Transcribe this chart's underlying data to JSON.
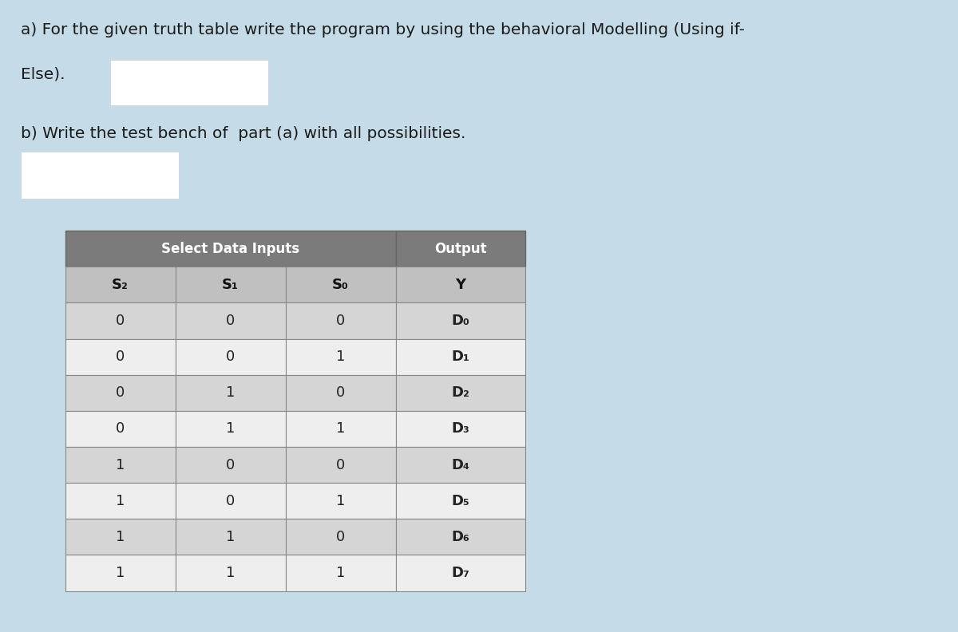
{
  "background_color": "#c5dce8",
  "title_a_line1": "a) For the given truth table write the program by using the behavioral Modelling (Using if-",
  "title_a_line2": "Else).",
  "title_b": "b) Write the test bench of  part (a) with all possibilities.",
  "table_header_group1": "Select Data Inputs",
  "table_header_group2": "Output",
  "col_headers": [
    "S₂",
    "S₁",
    "S₀",
    "Y"
  ],
  "rows": [
    [
      "0",
      "0",
      "0",
      "D₀"
    ],
    [
      "0",
      "0",
      "1",
      "D₁"
    ],
    [
      "0",
      "1",
      "0",
      "D₂"
    ],
    [
      "0",
      "1",
      "1",
      "D₃"
    ],
    [
      "1",
      "0",
      "0",
      "D₄"
    ],
    [
      "1",
      "0",
      "1",
      "D₅"
    ],
    [
      "1",
      "1",
      "0",
      "D₆"
    ],
    [
      "1",
      "1",
      "1",
      "D₇"
    ]
  ],
  "header_bg": "#7a7a7a",
  "subheader_bg": "#8a8a8a",
  "row_bg_odd": "#d8d8d8",
  "row_bg_even": "#f0f0f0",
  "border_color": "#999999",
  "text_color_header": "#ffffff",
  "text_color_subheader": "#111111",
  "text_color_data": "#222222"
}
